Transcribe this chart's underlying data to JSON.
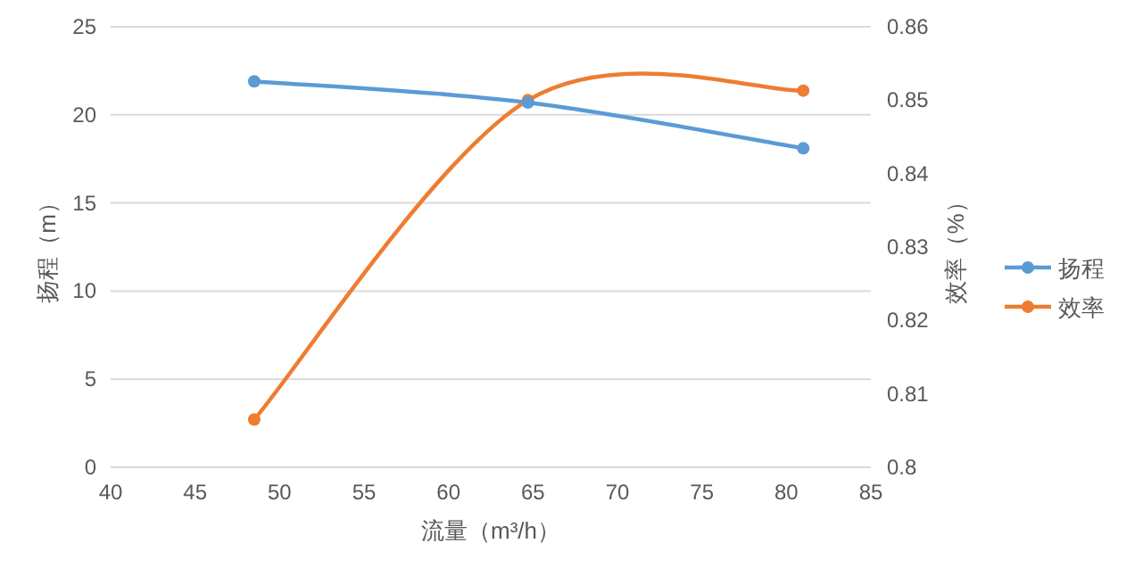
{
  "chart_data": {
    "type": "line",
    "xlabel": "流量（m³/h）",
    "ylabel": "扬程（m）",
    "y2label": "效率（%）",
    "x": [
      48.5,
      64.7,
      81
    ],
    "series": [
      {
        "name": "扬程",
        "color": "#5b9bd5",
        "values": [
          21.9,
          20.7,
          18.1
        ]
      },
      {
        "name": "效率",
        "color": "#ed7d31",
        "values": [
          0.8065,
          0.85,
          0.8513
        ],
        "axis": "y2"
      }
    ],
    "xlim": [
      40,
      85
    ],
    "xticks": [
      40,
      45,
      50,
      55,
      60,
      65,
      70,
      75,
      80,
      85
    ],
    "ylim": [
      0,
      25
    ],
    "yticks": [
      0,
      5,
      10,
      15,
      20,
      25
    ],
    "y2lim": [
      0.8,
      0.86
    ],
    "y2ticks": [
      0.8,
      0.81,
      0.82,
      0.83,
      0.84,
      0.85,
      0.86
    ],
    "grid": "y",
    "legend": "right",
    "marker": "circle",
    "line_style": "solid"
  }
}
